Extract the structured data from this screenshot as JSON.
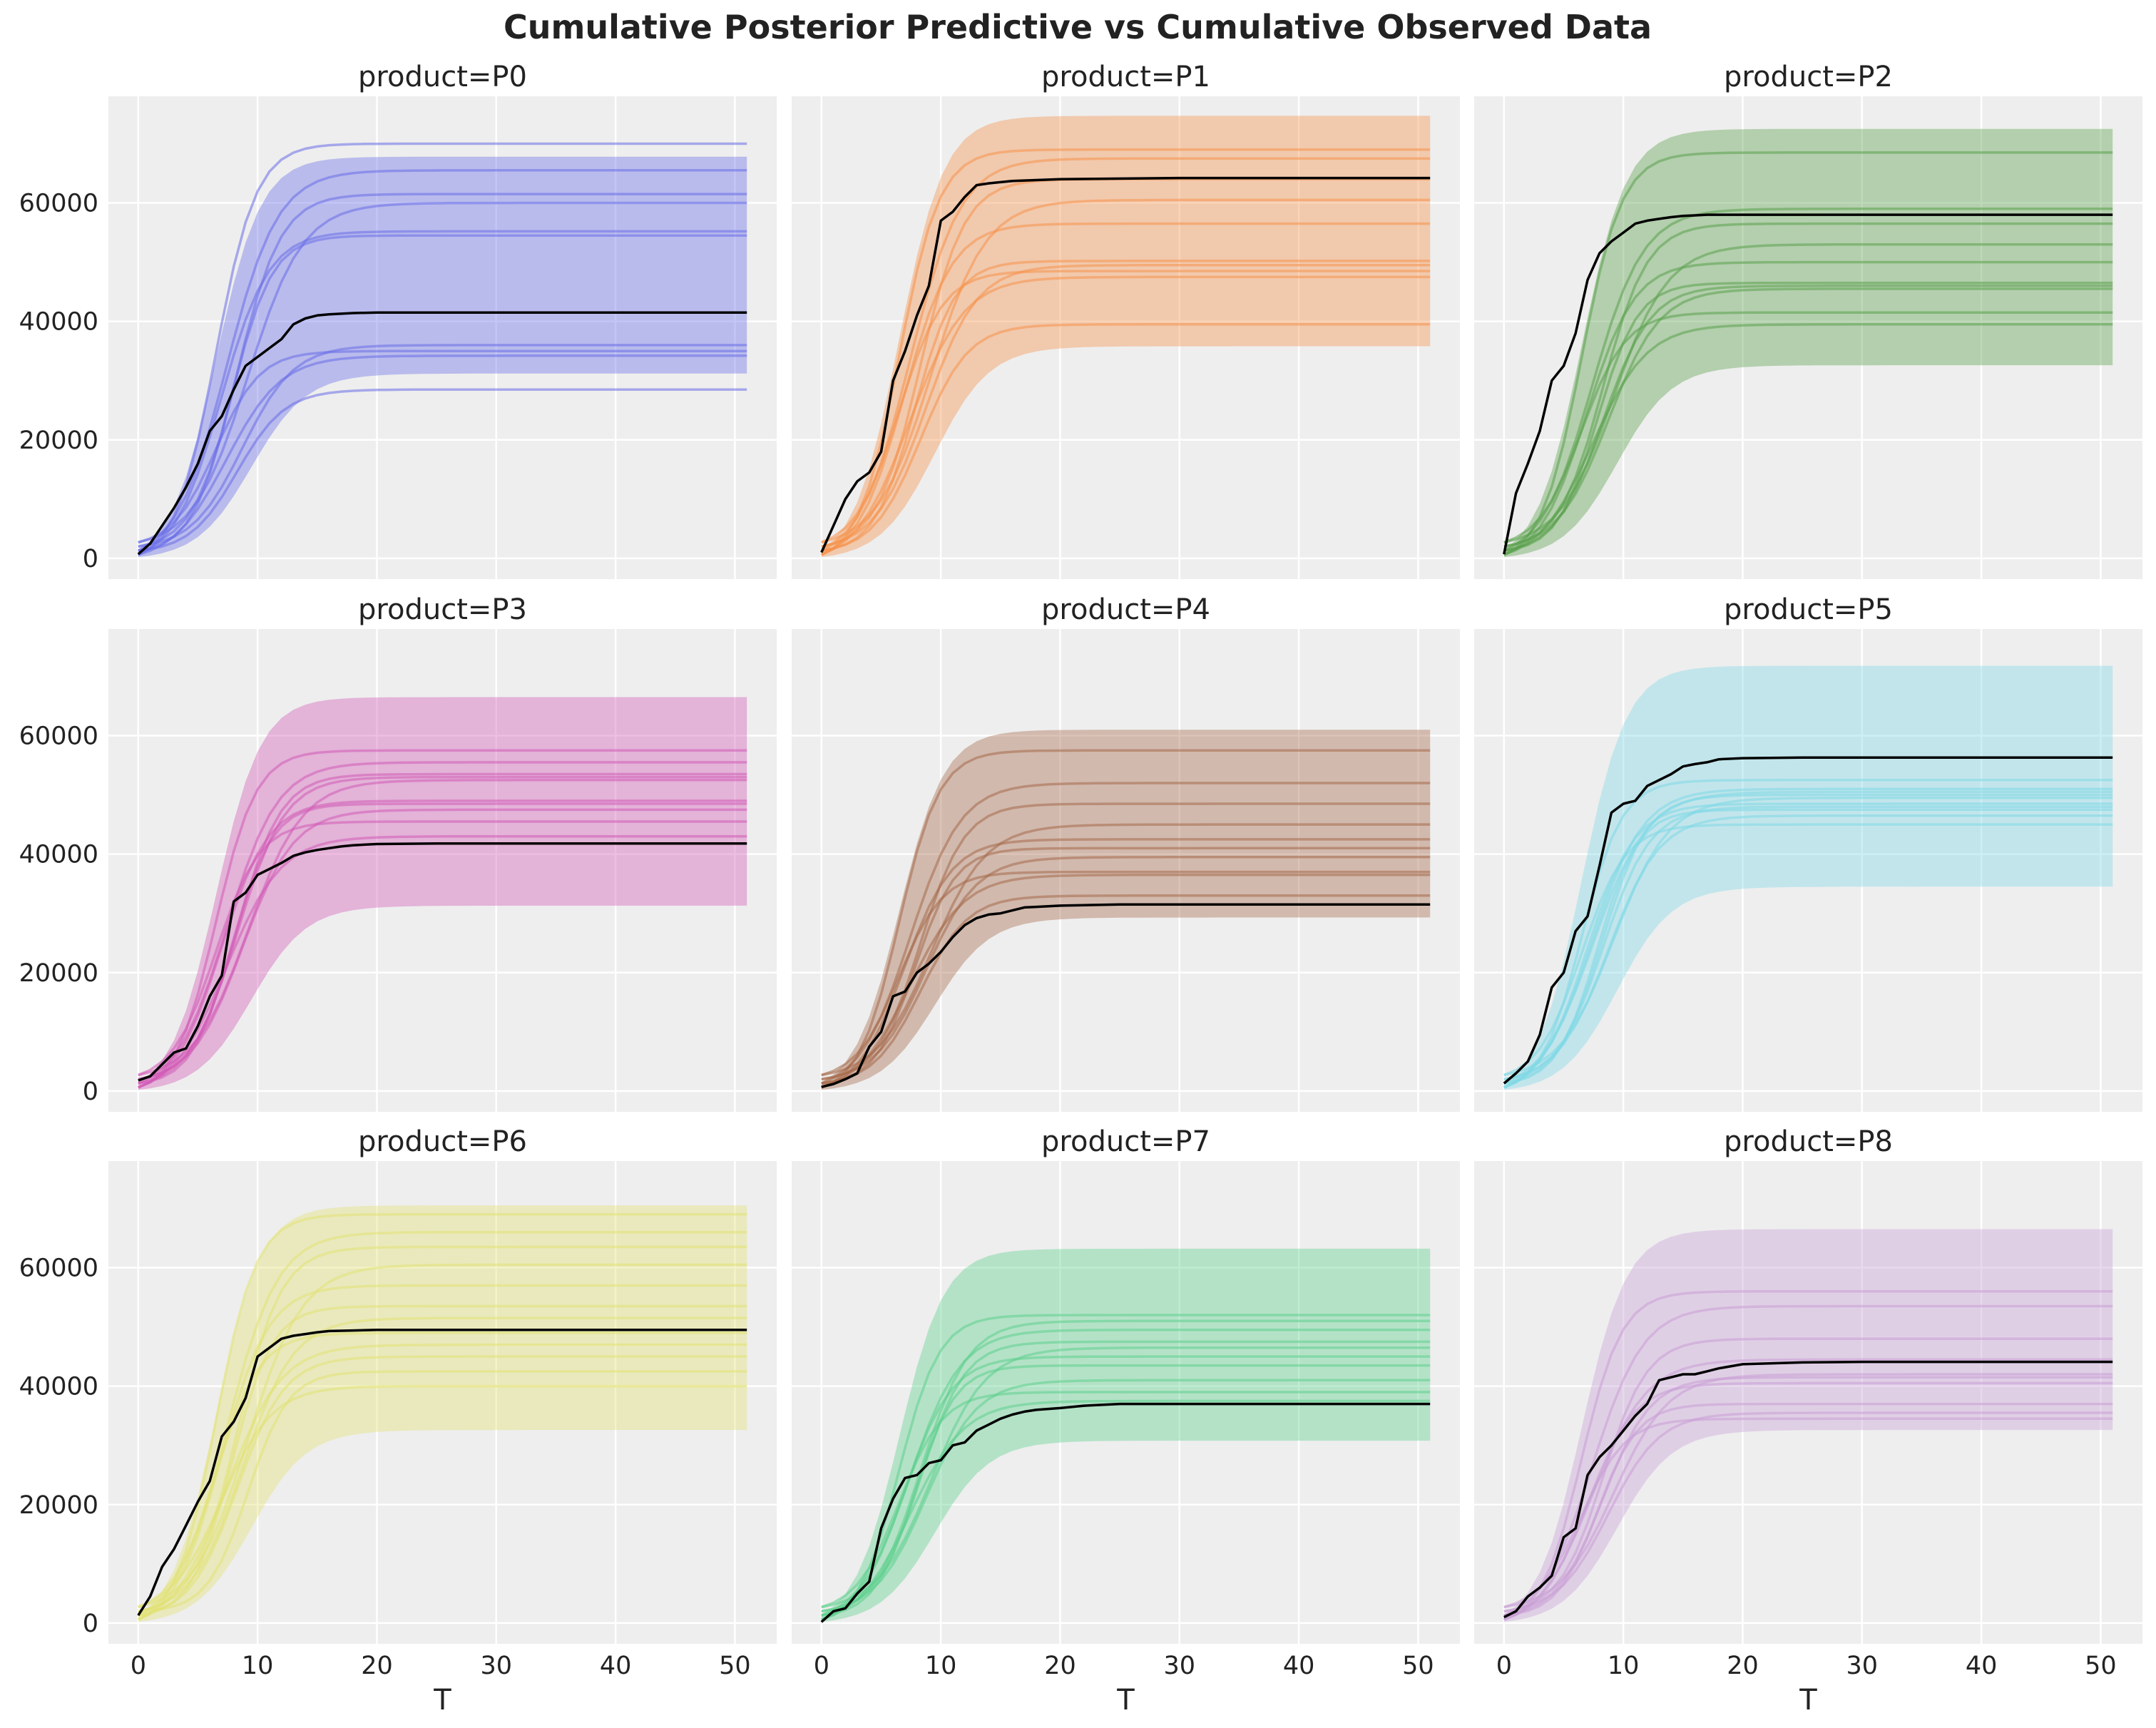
{
  "title": "Cumulative Posterior Predictive vs Cumulative Observed Data",
  "chart_data": {
    "type": "line",
    "title": "Cumulative Posterior Predictive vs Cumulative Observed Data",
    "xlabel": "T",
    "ylabel": "",
    "xlim": [
      -2.5,
      53.5
    ],
    "ylim": [
      -3500,
      78000
    ],
    "xticks": [
      0,
      10,
      20,
      30,
      40,
      50
    ],
    "yticks": [
      0,
      20000,
      40000,
      60000
    ],
    "grid": true,
    "layout": "3x3 grid, shared axes",
    "x_range": [
      0,
      51
    ],
    "panels": [
      {
        "title": "product=P0",
        "color": "#6a6ee8",
        "band": {
          "upper_final": 67800,
          "lower_final": 31200
        },
        "samples_final": [
          70000,
          65500,
          61500,
          60000,
          55200,
          54500,
          36000,
          35000,
          34200,
          28500
        ],
        "observed": {
          "x": [
            0,
            1,
            2,
            3,
            4,
            5,
            6,
            7,
            8,
            9,
            10,
            11,
            12,
            13,
            14,
            15,
            16,
            17,
            18,
            20,
            25,
            30,
            40,
            51
          ],
          "y": [
            700,
            2500,
            5500,
            8500,
            12000,
            16000,
            21500,
            24000,
            28500,
            32500,
            34000,
            35500,
            37000,
            39500,
            40500,
            41000,
            41200,
            41300,
            41400,
            41500,
            41500,
            41500,
            41500,
            41500
          ]
        }
      },
      {
        "title": "product=P1",
        "color": "#f5924a",
        "band": {
          "upper_final": 74700,
          "lower_final": 35800
        },
        "samples_final": [
          69000,
          67500,
          64000,
          60500,
          56500,
          50200,
          49500,
          48500,
          47500,
          39500
        ],
        "observed": {
          "x": [
            0,
            1,
            2,
            3,
            4,
            5,
            6,
            7,
            8,
            9,
            10,
            11,
            12,
            13,
            14,
            16,
            20,
            30,
            51
          ],
          "y": [
            1000,
            5500,
            10000,
            13000,
            14500,
            18000,
            30000,
            35000,
            41000,
            46000,
            57000,
            58500,
            61000,
            63000,
            63300,
            63700,
            64000,
            64200,
            64200
          ]
        }
      },
      {
        "title": "product=P2",
        "color": "#5aa04c",
        "band": {
          "upper_final": 72500,
          "lower_final": 32600
        },
        "samples_final": [
          68500,
          59000,
          56500,
          53000,
          50000,
          46500,
          45500,
          41500,
          39500,
          46000
        ],
        "observed": {
          "x": [
            0,
            1,
            2,
            3,
            4,
            5,
            6,
            7,
            8,
            9,
            10,
            11,
            12,
            13,
            14,
            15,
            16,
            17,
            18,
            20,
            25,
            30,
            51
          ],
          "y": [
            700,
            11000,
            16000,
            21500,
            30000,
            32500,
            38000,
            47000,
            51500,
            53500,
            55000,
            56500,
            57000,
            57300,
            57600,
            57800,
            57900,
            58000,
            58000,
            58000,
            58000,
            58000,
            58000
          ]
        }
      },
      {
        "title": "product=P3",
        "color": "#d25ab7",
        "band": {
          "upper_final": 66500,
          "lower_final": 31300
        },
        "samples_final": [
          57500,
          55500,
          53500,
          52500,
          49000,
          48500,
          47500,
          45500,
          43000,
          53000
        ],
        "observed": {
          "x": [
            0,
            1,
            2,
            3,
            4,
            5,
            6,
            7,
            8,
            9,
            10,
            11,
            12,
            13,
            14,
            15,
            16,
            17,
            18,
            20,
            25,
            30,
            51
          ],
          "y": [
            1800,
            2500,
            4500,
            6500,
            7200,
            11000,
            16000,
            19500,
            32000,
            33500,
            36500,
            37500,
            38500,
            39700,
            40300,
            40700,
            41000,
            41300,
            41500,
            41700,
            41800,
            41800,
            41800
          ]
        }
      },
      {
        "title": "product=P4",
        "color": "#a56a4a",
        "band": {
          "upper_final": 61000,
          "lower_final": 29300
        },
        "samples_final": [
          57500,
          52000,
          48500,
          45000,
          42500,
          41000,
          39500,
          37000,
          36500,
          33000
        ],
        "observed": {
          "x": [
            0,
            1,
            2,
            3,
            4,
            5,
            6,
            7,
            8,
            9,
            10,
            11,
            12,
            13,
            14,
            15,
            16,
            17,
            18,
            20,
            25,
            30,
            51
          ],
          "y": [
            700,
            1200,
            2000,
            3000,
            7500,
            10000,
            16000,
            16800,
            20000,
            21500,
            23500,
            26000,
            28000,
            29200,
            29800,
            30000,
            30500,
            31000,
            31100,
            31300,
            31500,
            31500,
            31500
          ]
        }
      },
      {
        "title": "product=P5",
        "color": "#7fd8e6",
        "band": {
          "upper_final": 71800,
          "lower_final": 34500
        },
        "samples_final": [
          52500,
          51000,
          50000,
          49500,
          48500,
          47500,
          46500,
          45000,
          50500,
          48000
        ],
        "observed": {
          "x": [
            0,
            1,
            2,
            3,
            4,
            5,
            6,
            7,
            8,
            9,
            10,
            11,
            12,
            13,
            14,
            15,
            16,
            17,
            18,
            20,
            25,
            30,
            51
          ],
          "y": [
            1300,
            3000,
            5000,
            9500,
            17500,
            20000,
            27000,
            29500,
            38000,
            47000,
            48500,
            49000,
            51500,
            52500,
            53500,
            54800,
            55200,
            55500,
            56000,
            56200,
            56300,
            56300,
            56300
          ]
        }
      },
      {
        "title": "product=P6",
        "color": "#e2e274",
        "band": {
          "upper_final": 70500,
          "lower_final": 32600
        },
        "samples_final": [
          69000,
          66000,
          63500,
          60500,
          57000,
          53500,
          51500,
          49000,
          47000,
          45000,
          42500,
          40000
        ],
        "observed": {
          "x": [
            0,
            1,
            2,
            3,
            4,
            5,
            6,
            7,
            8,
            9,
            10,
            11,
            12,
            13,
            14,
            15,
            16,
            18,
            20,
            25,
            30,
            51
          ],
          "y": [
            1300,
            4500,
            9500,
            12500,
            16500,
            20500,
            24000,
            31500,
            34000,
            38000,
            45000,
            46500,
            48000,
            48500,
            48800,
            49100,
            49300,
            49400,
            49500,
            49500,
            49500,
            49500
          ]
        }
      },
      {
        "title": "product=P7",
        "color": "#5ccf8c",
        "band": {
          "upper_final": 63200,
          "lower_final": 30800
        },
        "samples_final": [
          52000,
          49500,
          47500,
          46500,
          45000,
          43500,
          41000,
          39000,
          37500,
          51000
        ],
        "observed": {
          "x": [
            0,
            1,
            2,
            3,
            4,
            5,
            6,
            7,
            8,
            9,
            10,
            11,
            12,
            13,
            14,
            15,
            16,
            17,
            18,
            20,
            22,
            25,
            30,
            51
          ],
          "y": [
            200,
            2000,
            2500,
            5000,
            7000,
            16000,
            21000,
            24500,
            25000,
            27000,
            27500,
            30000,
            30500,
            32500,
            33500,
            34500,
            35200,
            35700,
            36000,
            36300,
            36700,
            37000,
            37000,
            37000
          ]
        }
      },
      {
        "title": "product=P8",
        "color": "#c89fd6",
        "band": {
          "upper_final": 66500,
          "lower_final": 32600
        },
        "samples_final": [
          56000,
          53500,
          48000,
          42000,
          40500,
          37000,
          35500,
          34500,
          44500,
          41500
        ],
        "observed": {
          "x": [
            0,
            1,
            2,
            3,
            4,
            5,
            6,
            7,
            8,
            9,
            10,
            11,
            12,
            13,
            14,
            15,
            16,
            17,
            18,
            20,
            25,
            30,
            51
          ],
          "y": [
            1000,
            2000,
            4500,
            6000,
            8000,
            14500,
            16000,
            25000,
            28000,
            30000,
            32500,
            35000,
            37000,
            41000,
            41500,
            42000,
            42000,
            42500,
            43000,
            43700,
            44000,
            44100,
            44100
          ]
        }
      }
    ]
  }
}
